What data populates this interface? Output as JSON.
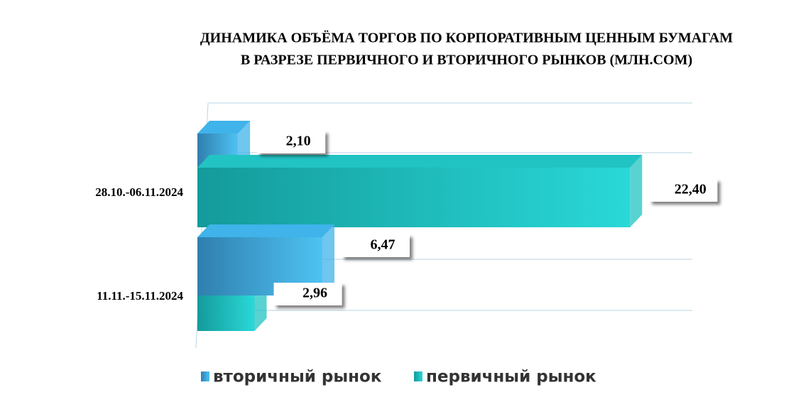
{
  "chart_data": {
    "type": "bar3d-horizontal",
    "title": [
      "ДИНАМИКА ОБЪЁМА ТОРГОВ ПО КОРПОРАТИВНЫМ ЦЕННЫМ БУМАГАМ",
      "В РАЗРЕЗЕ ПЕРВИЧНОГО И ВТОРИЧНОГО РЫНКОВ  (МЛН.СОМ)"
    ],
    "categories": [
      "28.10.-06.11.2024",
      "11.11.-15.11.2024"
    ],
    "series": [
      {
        "name": "вторичный рынок",
        "color": "#3fb3ea",
        "values": [
          2.1,
          6.47
        ],
        "value_labels": [
          "2,10",
          "6,47"
        ]
      },
      {
        "name": "первичный рынок",
        "color": "#22c3c3",
        "values": [
          22.4,
          2.96
        ],
        "value_labels": [
          "22,40",
          "2,96"
        ]
      }
    ],
    "xlim": [
      0,
      25
    ]
  }
}
